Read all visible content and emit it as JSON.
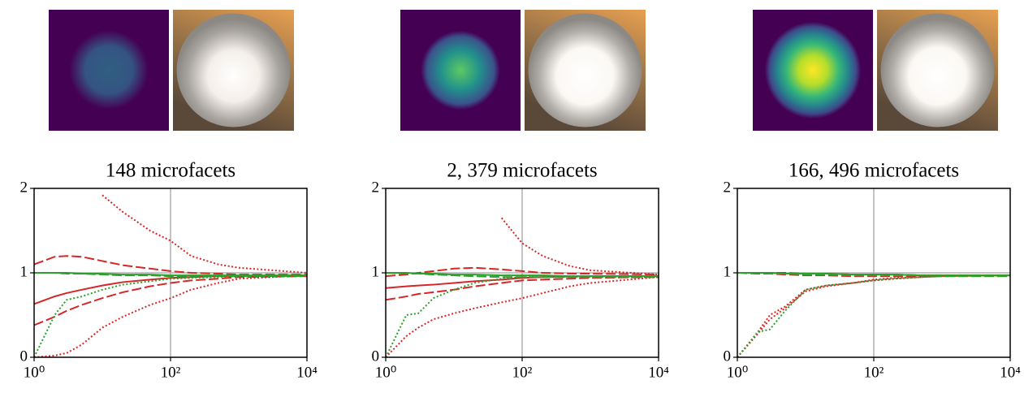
{
  "chart_data": [
    {
      "type": "line",
      "title": "148 microfacets",
      "log_x": true,
      "x": [
        1,
        2,
        3,
        5,
        10,
        20,
        50,
        100,
        200,
        500,
        1000,
        10000
      ],
      "xlim": [
        1,
        10000
      ],
      "xticks": [
        {
          "value": 1,
          "label": "10⁰"
        },
        {
          "value": 100,
          "label": "10²"
        },
        {
          "value": 10000,
          "label": "10⁴"
        }
      ],
      "ylim": [
        0,
        2
      ],
      "yticks": [
        0,
        1,
        2
      ],
      "vlines": [
        100
      ],
      "hlines": [
        1
      ],
      "series": [
        {
          "color": "#d62728",
          "dash": "solid",
          "values": [
            0.63,
            0.72,
            0.76,
            0.8,
            0.85,
            0.89,
            0.92,
            0.94,
            0.95,
            0.96,
            0.965,
            0.97
          ]
        },
        {
          "color": "#d62728",
          "dash": "dashed",
          "values": [
            1.1,
            1.19,
            1.2,
            1.19,
            1.14,
            1.09,
            1.05,
            1.02,
            1.0,
            0.99,
            0.98,
            0.98
          ]
        },
        {
          "color": "#d62728",
          "dash": "dashed",
          "values": [
            0.38,
            0.48,
            0.55,
            0.62,
            0.7,
            0.77,
            0.84,
            0.88,
            0.91,
            0.93,
            0.95,
            0.96
          ]
        },
        {
          "color": "#d62728",
          "dash": "dotted",
          "values": [
            null,
            null,
            null,
            null,
            1.92,
            1.72,
            1.5,
            1.38,
            1.2,
            1.1,
            1.06,
            1.0
          ]
        },
        {
          "color": "#d62728",
          "dash": "dotted",
          "values": [
            0.0,
            0.02,
            0.05,
            0.15,
            0.35,
            0.48,
            0.62,
            0.7,
            0.8,
            0.88,
            0.93,
            0.97
          ]
        },
        {
          "color": "#2ca02c",
          "dash": "solid",
          "values": [
            1.0,
            1.0,
            1.0,
            0.99,
            0.99,
            0.98,
            0.98,
            0.97,
            0.97,
            0.97,
            0.97,
            0.97
          ]
        },
        {
          "color": "#2ca02c",
          "dash": "dashed",
          "values": [
            1.0,
            1.0,
            0.99,
            0.99,
            0.98,
            0.97,
            0.97,
            0.96,
            0.96,
            0.96,
            0.96,
            0.96
          ]
        },
        {
          "color": "#2ca02c",
          "dash": "dotted",
          "values": [
            0.0,
            0.5,
            0.68,
            0.72,
            0.8,
            0.86,
            0.9,
            0.93,
            0.94,
            0.95,
            0.96,
            0.97
          ]
        }
      ]
    },
    {
      "type": "line",
      "title": "2, 379 microfacets",
      "log_x": true,
      "x": [
        1,
        2,
        3,
        5,
        10,
        20,
        50,
        100,
        200,
        500,
        1000,
        10000
      ],
      "xlim": [
        1,
        10000
      ],
      "xticks": [
        {
          "value": 1,
          "label": "10⁰"
        },
        {
          "value": 100,
          "label": "10²"
        },
        {
          "value": 10000,
          "label": "10⁴"
        }
      ],
      "ylim": [
        0,
        2
      ],
      "yticks": [
        0,
        1,
        2
      ],
      "vlines": [
        100
      ],
      "hlines": [
        1
      ],
      "series": [
        {
          "color": "#d62728",
          "dash": "solid",
          "values": [
            0.82,
            0.84,
            0.85,
            0.86,
            0.88,
            0.9,
            0.92,
            0.94,
            0.95,
            0.955,
            0.96,
            0.96
          ]
        },
        {
          "color": "#d62728",
          "dash": "dashed",
          "values": [
            0.96,
            0.98,
            1.0,
            1.02,
            1.05,
            1.06,
            1.04,
            1.02,
            1.0,
            0.99,
            0.99,
            0.98
          ]
        },
        {
          "color": "#d62728",
          "dash": "dashed",
          "values": [
            0.68,
            0.72,
            0.75,
            0.77,
            0.8,
            0.84,
            0.88,
            0.91,
            0.92,
            0.93,
            0.94,
            0.95
          ]
        },
        {
          "color": "#d62728",
          "dash": "dotted",
          "values": [
            null,
            null,
            null,
            null,
            null,
            null,
            1.65,
            1.35,
            1.2,
            1.08,
            1.03,
            0.98
          ]
        },
        {
          "color": "#d62728",
          "dash": "dotted",
          "values": [
            0.0,
            0.25,
            0.35,
            0.45,
            0.52,
            0.58,
            0.65,
            0.7,
            0.76,
            0.84,
            0.88,
            0.95
          ]
        },
        {
          "color": "#2ca02c",
          "dash": "solid",
          "values": [
            1.0,
            1.0,
            0.99,
            0.99,
            0.98,
            0.98,
            0.97,
            0.97,
            0.97,
            0.96,
            0.96,
            0.96
          ]
        },
        {
          "color": "#2ca02c",
          "dash": "dashed",
          "values": [
            1.0,
            0.99,
            0.99,
            0.98,
            0.97,
            0.96,
            0.95,
            0.95,
            0.95,
            0.95,
            0.95,
            0.95
          ]
        },
        {
          "color": "#2ca02c",
          "dash": "dotted",
          "values": [
            0.0,
            0.5,
            0.52,
            0.7,
            0.8,
            0.88,
            0.93,
            0.95,
            0.95,
            0.96,
            0.96,
            0.96
          ]
        }
      ]
    },
    {
      "type": "line",
      "title": "166, 496 microfacets",
      "log_x": true,
      "x": [
        1,
        2,
        3,
        5,
        10,
        20,
        50,
        100,
        200,
        500,
        1000,
        10000
      ],
      "xlim": [
        1,
        10000
      ],
      "xticks": [
        {
          "value": 1,
          "label": "10⁰"
        },
        {
          "value": 100,
          "label": "10²"
        },
        {
          "value": 10000,
          "label": "10⁴"
        }
      ],
      "ylim": [
        0,
        2
      ],
      "yticks": [
        0,
        1,
        2
      ],
      "vlines": [
        100
      ],
      "hlines": [
        1
      ],
      "series": [
        {
          "color": "#d62728",
          "dash": "solid",
          "values": [
            1.0,
            1.0,
            1.0,
            0.99,
            0.99,
            0.99,
            0.98,
            0.98,
            0.98,
            0.97,
            0.97,
            0.97
          ]
        },
        {
          "color": "#d62728",
          "dash": "dashed",
          "values": [
            1.0,
            1.0,
            1.0,
            1.0,
            0.99,
            0.99,
            0.98,
            0.98,
            0.98,
            0.97,
            0.97,
            0.97
          ]
        },
        {
          "color": "#d62728",
          "dash": "dashed",
          "values": [
            1.0,
            0.99,
            0.99,
            0.98,
            0.97,
            0.97,
            0.96,
            0.96,
            0.96,
            0.96,
            0.96,
            0.96
          ]
        },
        {
          "color": "#d62728",
          "dash": "dotted",
          "values": [
            0.0,
            0.3,
            0.5,
            0.6,
            0.8,
            0.85,
            0.88,
            0.92,
            0.94,
            0.95,
            0.96,
            0.97
          ]
        },
        {
          "color": "#d62728",
          "dash": "dotted",
          "values": [
            0.0,
            0.28,
            0.45,
            0.58,
            0.78,
            0.84,
            0.88,
            0.91,
            0.93,
            0.95,
            0.96,
            0.97
          ]
        },
        {
          "color": "#2ca02c",
          "dash": "solid",
          "values": [
            1.0,
            1.0,
            1.0,
            0.99,
            0.99,
            0.99,
            0.98,
            0.98,
            0.98,
            0.97,
            0.97,
            0.97
          ]
        },
        {
          "color": "#2ca02c",
          "dash": "dashed",
          "values": [
            1.0,
            1.0,
            0.99,
            0.99,
            0.98,
            0.98,
            0.97,
            0.97,
            0.97,
            0.97,
            0.96,
            0.96
          ]
        },
        {
          "color": "#2ca02c",
          "dash": "dotted",
          "values": [
            0.0,
            0.3,
            0.33,
            0.55,
            0.8,
            0.85,
            0.88,
            0.91,
            0.93,
            0.95,
            0.96,
            0.97
          ]
        }
      ]
    }
  ]
}
